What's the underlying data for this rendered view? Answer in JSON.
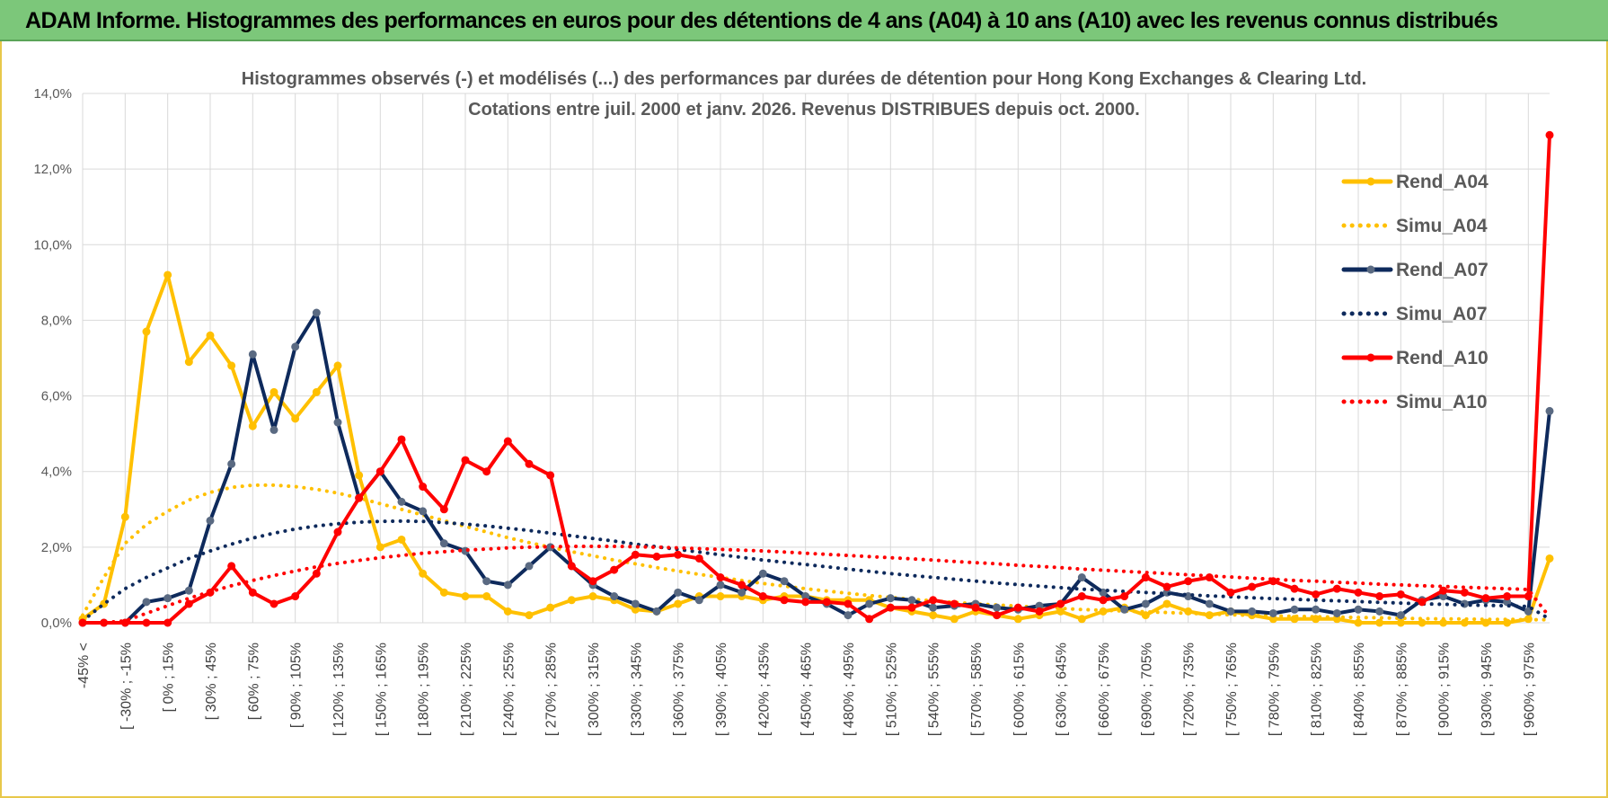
{
  "banner": {
    "title": "ADAM Informe. Histogrammes des performances en euros pour des détentions de 4 ans (A04) à 10 ans (A10) avec les revenus connus distribués"
  },
  "colors": {
    "A04": "#FFC000",
    "A07": "#0E2A5C",
    "A10": "#FF0000",
    "grid": "#d9d9d9",
    "marker07": "#5a6a82"
  },
  "chart_data": {
    "type": "line",
    "title_lines": [
      "Histogrammes observés (-) et modélisés (...) des performances par durées de détention pour Hong Kong Exchanges & Clearing Ltd.",
      "Cotations entre juil. 2000 et janv. 2026. Revenus DISTRIBUES depuis oct. 2000."
    ],
    "ylim": [
      0,
      14
    ],
    "y_ticks": [
      0,
      2,
      4,
      6,
      8,
      10,
      12,
      14
    ],
    "y_tick_labels": [
      "0,0%",
      "2,0%",
      "4,0%",
      "6,0%",
      "8,0%",
      "10,0%",
      "12,0%",
      "14,0%"
    ],
    "x_count": 70,
    "x_tick_labels": [
      "-45% <",
      "[ -30% ; -15%",
      "[ 0% ; 15%",
      "[ 30% ; 45%",
      "[ 60% ; 75%",
      "[ 90% ; 105%",
      "[ 120% ; 135%",
      "[ 150% ; 165%",
      "[ 180% ; 195%",
      "[ 210% ; 225%",
      "[ 240% ; 255%",
      "[ 270% ; 285%",
      "[ 300% ; 315%",
      "[ 330% ; 345%",
      "[ 360% ; 375%",
      "[ 390% ; 405%",
      "[ 420% ; 435%",
      "[ 450% ; 465%",
      "[ 480% ; 495%",
      "[ 510% ; 525%",
      "[ 540% ; 555%",
      "[ 570% ; 585%",
      "[ 600% ; 615%",
      "[ 630% ; 645%",
      "[ 660% ; 675%",
      "[ 690% ; 705%",
      "[ 720% ; 735%",
      "[ 750% ; 765%",
      "[ 780% ; 795%",
      "[ 810% ; 825%",
      "[ 840% ; 855%",
      "[ 870% ; 885%",
      "[ 900% ; 915%",
      "[ 930% ; 945%",
      "[ 960% ; 975%"
    ],
    "series": [
      {
        "name": "Rend_A04",
        "style": "solid",
        "color": "#FFC000",
        "marker": "#FFC000",
        "values": [
          0.1,
          0.5,
          2.8,
          7.7,
          9.2,
          6.9,
          7.6,
          6.8,
          5.2,
          6.1,
          5.4,
          6.1,
          6.8,
          3.9,
          2.0,
          2.2,
          1.3,
          0.8,
          0.7,
          0.7,
          0.3,
          0.2,
          0.4,
          0.6,
          0.7,
          0.6,
          0.35,
          0.3,
          0.5,
          0.7,
          0.7,
          0.7,
          0.6,
          0.7,
          0.7,
          0.6,
          0.6,
          0.6,
          0.4,
          0.3,
          0.2,
          0.1,
          0.3,
          0.2,
          0.1,
          0.2,
          0.3,
          0.1,
          0.3,
          0.4,
          0.2,
          0.5,
          0.3,
          0.2,
          0.3,
          0.2,
          0.1,
          0.1,
          0.1,
          0.1,
          0.0,
          0.0,
          0.0,
          0.0,
          0.0,
          0.0,
          0.0,
          0.0,
          0.1,
          1.7
        ]
      },
      {
        "name": "Simu_A04",
        "style": "dotted",
        "color": "#FFC000",
        "values": [
          0.2,
          1.2,
          2.1,
          2.6,
          2.95,
          3.25,
          3.45,
          3.58,
          3.64,
          3.64,
          3.6,
          3.53,
          3.43,
          3.3,
          3.15,
          3.0,
          2.85,
          2.7,
          2.55,
          2.4,
          2.25,
          2.12,
          2.0,
          1.88,
          1.77,
          1.66,
          1.56,
          1.46,
          1.37,
          1.28,
          1.2,
          1.12,
          1.04,
          0.97,
          0.9,
          0.84,
          0.78,
          0.72,
          0.67,
          0.62,
          0.58,
          0.54,
          0.5,
          0.47,
          0.44,
          0.41,
          0.38,
          0.35,
          0.33,
          0.31,
          0.29,
          0.27,
          0.25,
          0.23,
          0.21,
          0.2,
          0.18,
          0.17,
          0.16,
          0.15,
          0.14,
          0.13,
          0.12,
          0.11,
          0.1,
          0.1,
          0.09,
          0.09,
          0.08,
          0.08
        ]
      },
      {
        "name": "Rend_A07",
        "style": "solid",
        "color": "#0E2A5C",
        "marker": "#5a6a82",
        "values": [
          0.0,
          0.0,
          0.0,
          0.55,
          0.65,
          0.85,
          2.7,
          4.2,
          7.1,
          5.1,
          7.3,
          8.2,
          5.3,
          3.3,
          4.0,
          3.2,
          2.95,
          2.1,
          1.9,
          1.1,
          1.0,
          1.5,
          2.0,
          1.5,
          1.0,
          0.7,
          0.5,
          0.3,
          0.8,
          0.6,
          1.0,
          0.8,
          1.3,
          1.1,
          0.7,
          0.5,
          0.2,
          0.5,
          0.65,
          0.6,
          0.4,
          0.45,
          0.5,
          0.4,
          0.35,
          0.45,
          0.5,
          1.2,
          0.8,
          0.35,
          0.5,
          0.8,
          0.7,
          0.5,
          0.3,
          0.3,
          0.25,
          0.35,
          0.35,
          0.25,
          0.35,
          0.3,
          0.2,
          0.6,
          0.7,
          0.5,
          0.6,
          0.55,
          0.3,
          5.6
        ]
      },
      {
        "name": "Simu_A07",
        "style": "dotted",
        "color": "#0E2A5C",
        "values": [
          0.05,
          0.5,
          0.9,
          1.2,
          1.45,
          1.7,
          1.9,
          2.08,
          2.24,
          2.37,
          2.48,
          2.56,
          2.62,
          2.66,
          2.68,
          2.69,
          2.68,
          2.65,
          2.61,
          2.56,
          2.5,
          2.44,
          2.37,
          2.3,
          2.23,
          2.16,
          2.08,
          2.01,
          1.94,
          1.87,
          1.8,
          1.73,
          1.66,
          1.6,
          1.54,
          1.48,
          1.42,
          1.36,
          1.3,
          1.25,
          1.2,
          1.15,
          1.1,
          1.05,
          1.01,
          0.97,
          0.93,
          0.89,
          0.86,
          0.83,
          0.8,
          0.77,
          0.74,
          0.71,
          0.69,
          0.66,
          0.64,
          0.62,
          0.6,
          0.58,
          0.56,
          0.54,
          0.52,
          0.5,
          0.49,
          0.47,
          0.46,
          0.45,
          0.43,
          0.1
        ]
      },
      {
        "name": "Rend_A10",
        "style": "solid",
        "color": "#FF0000",
        "marker": "#FF0000",
        "values": [
          0.0,
          0.0,
          0.0,
          0.0,
          0.0,
          0.5,
          0.8,
          1.5,
          0.8,
          0.5,
          0.7,
          1.3,
          2.4,
          3.3,
          4.0,
          4.85,
          3.6,
          3.0,
          4.3,
          4.0,
          4.8,
          4.2,
          3.9,
          1.5,
          1.1,
          1.4,
          1.8,
          1.75,
          1.8,
          1.7,
          1.2,
          1.0,
          0.7,
          0.6,
          0.55,
          0.55,
          0.5,
          0.1,
          0.4,
          0.4,
          0.6,
          0.5,
          0.4,
          0.2,
          0.4,
          0.3,
          0.5,
          0.7,
          0.6,
          0.7,
          1.2,
          0.95,
          1.1,
          1.2,
          0.8,
          0.95,
          1.1,
          0.9,
          0.75,
          0.9,
          0.8,
          0.7,
          0.75,
          0.55,
          0.85,
          0.8,
          0.65,
          0.7,
          0.7,
          12.9
        ]
      },
      {
        "name": "Simu_A10",
        "style": "dotted",
        "color": "#FF0000",
        "values": [
          0.0,
          0.0,
          0.05,
          0.25,
          0.45,
          0.65,
          0.82,
          0.98,
          1.12,
          1.25,
          1.37,
          1.48,
          1.57,
          1.65,
          1.72,
          1.78,
          1.84,
          1.88,
          1.92,
          1.95,
          1.98,
          2.0,
          2.01,
          2.02,
          2.02,
          2.02,
          2.01,
          2.0,
          1.98,
          1.96,
          1.94,
          1.92,
          1.9,
          1.87,
          1.84,
          1.81,
          1.78,
          1.75,
          1.72,
          1.69,
          1.66,
          1.62,
          1.59,
          1.56,
          1.52,
          1.49,
          1.46,
          1.42,
          1.39,
          1.36,
          1.33,
          1.3,
          1.27,
          1.24,
          1.21,
          1.18,
          1.15,
          1.12,
          1.1,
          1.07,
          1.05,
          1.02,
          1.0,
          0.98,
          0.96,
          0.94,
          0.92,
          0.9,
          0.88,
          0.15
        ]
      }
    ],
    "legend_position": "right"
  }
}
